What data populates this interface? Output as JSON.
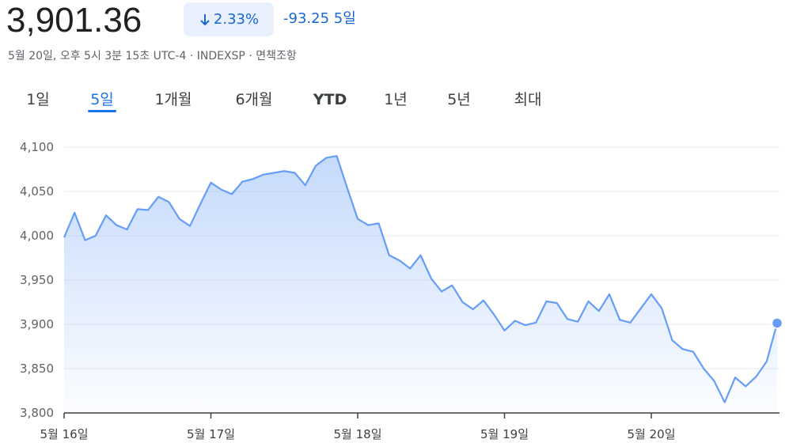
{
  "header": {
    "price": "3,901.36",
    "change_percent": "2.33%",
    "change": "-93.25",
    "period": "5일",
    "timestamp": "5월 20일, 오후 5시 3분 15초 UTC-4 · INDEXSP · ",
    "disclaimer": "면책조항"
  },
  "tabs": {
    "items": [
      "1일",
      "5일",
      "1개월",
      "6개월",
      "YTD",
      "1년",
      "5년",
      "최대"
    ],
    "selected": 1
  },
  "chart_data": {
    "type": "line",
    "color": "#669df6",
    "grid": true,
    "categories": [
      "5월 16일",
      null,
      null,
      null,
      null,
      null,
      null,
      null,
      null,
      null,
      null,
      null,
      null,
      null,
      "5월 17일",
      null,
      null,
      null,
      null,
      null,
      null,
      null,
      null,
      null,
      null,
      null,
      null,
      null,
      "5월 18일",
      null,
      null,
      null,
      null,
      null,
      null,
      null,
      null,
      null,
      null,
      null,
      null,
      null,
      "5월 19일",
      null,
      null,
      null,
      null,
      null,
      null,
      null,
      null,
      null,
      null,
      null,
      null,
      null,
      "5월 20일",
      null,
      null,
      null,
      null,
      null,
      null,
      null,
      null,
      null,
      null,
      null,
      null
    ],
    "values": [
      3998,
      4026,
      3995,
      4000,
      4023,
      4012,
      4007,
      4030,
      4029,
      4044,
      4038,
      4019,
      4011,
      4036,
      4060,
      4052,
      4047,
      4061,
      4064,
      4069,
      4071,
      4073,
      4071,
      4057,
      4079,
      4088,
      4090,
      4054,
      4019,
      4012,
      4014,
      3978,
      3972,
      3963,
      3978,
      3952,
      3937,
      3944,
      3925,
      3917,
      3927,
      3911,
      3893,
      3904,
      3899,
      3902,
      3926,
      3924,
      3906,
      3903,
      3926,
      3915,
      3934,
      3905,
      3902,
      3918,
      3934,
      3918,
      3882,
      3872,
      3869,
      3850,
      3836,
      3812,
      3840,
      3830,
      3841,
      3858,
      3901.36
    ],
    "ylim": [
      3800,
      4100
    ],
    "yticks": [
      {
        "value": 3800,
        "label": "3,800"
      },
      {
        "value": 3850,
        "label": "3,850"
      },
      {
        "value": 3900,
        "label": "3,900"
      },
      {
        "value": 3950,
        "label": "3,950"
      },
      {
        "value": 4000,
        "label": "4,000"
      },
      {
        "value": 4050,
        "label": "4,050"
      },
      {
        "value": 4100,
        "label": "4,100"
      }
    ]
  }
}
